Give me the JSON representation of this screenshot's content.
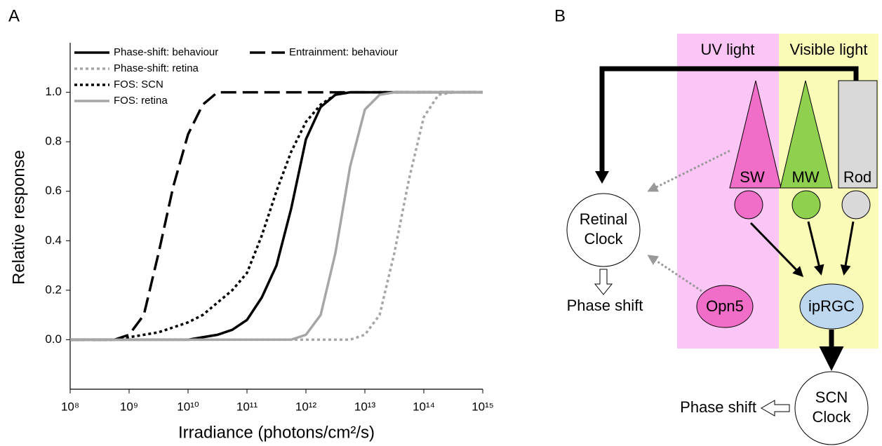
{
  "chart_data": {
    "type": "line",
    "panel": "A",
    "x_label": "Irradiance (photons/cm²/s)",
    "y_label": "Relative response",
    "xscale": "log",
    "legend": "top-left",
    "x": [
      100000000.0,
      177800000.0,
      316200000.0,
      562300000.0,
      1000000000.0,
      1778000000.0,
      3162000000.0,
      5623000000.0,
      10000000000.0,
      17780000000.0,
      31620000000.0,
      56230000000.0,
      100000000000.0,
      177800000000.0,
      316200000000.0,
      562300000000.0,
      1000000000000.0,
      1778000000000.0,
      3162000000000.0,
      5623000000000.0,
      10000000000000.0,
      17780000000000.0,
      31620000000000.0,
      56230000000000.0,
      100000000000000.0,
      177800000000000.0,
      316200000000000.0,
      562300000000000.0,
      1000000000000000.0
    ],
    "series": [
      {
        "name": "Phase-shift: behaviour",
        "color": "#000000",
        "style": "solid",
        "values": [
          0,
          0,
          0,
          0,
          0,
          0,
          0,
          0,
          0,
          0.01,
          0.02,
          0.04,
          0.08,
          0.17,
          0.3,
          0.53,
          0.81,
          0.94,
          0.99,
          1,
          1,
          1,
          1,
          1,
          1,
          1,
          1,
          1,
          1
        ]
      },
      {
        "name": "Entrainment: behaviour",
        "color": "#000000",
        "style": "dashed",
        "values": [
          0,
          0,
          0,
          0,
          0.02,
          0.1,
          0.35,
          0.62,
          0.83,
          0.95,
          1,
          1,
          1,
          1,
          1,
          1,
          1,
          1,
          1,
          1,
          1,
          1,
          1,
          1,
          1,
          1,
          1,
          1,
          1
        ]
      },
      {
        "name": "Phase-shift: retina",
        "color": "#a6a6a6",
        "style": "dotted",
        "values": [
          0,
          0,
          0,
          0,
          0,
          0,
          0,
          0,
          0,
          0,
          0,
          0,
          0,
          0,
          0,
          0,
          0,
          0,
          0,
          0,
          0.02,
          0.1,
          0.35,
          0.65,
          0.9,
          0.99,
          1,
          1,
          1
        ]
      },
      {
        "name": "FOS: SCN",
        "color": "#000000",
        "style": "dotted",
        "values": [
          0,
          0,
          0,
          0,
          0.01,
          0.02,
          0.03,
          0.05,
          0.07,
          0.1,
          0.15,
          0.2,
          0.27,
          0.42,
          0.6,
          0.76,
          0.88,
          0.95,
          0.99,
          1,
          1,
          1,
          1,
          1,
          1,
          1,
          1,
          1,
          1
        ]
      },
      {
        "name": "FOS: retina",
        "color": "#a6a6a6",
        "style": "solid",
        "values": [
          0,
          0,
          0,
          0,
          0,
          0,
          0,
          0,
          0,
          0,
          0,
          0,
          0,
          0,
          0,
          0,
          0.02,
          0.1,
          0.35,
          0.7,
          0.93,
          0.99,
          1,
          1,
          1,
          1,
          1,
          1,
          1
        ]
      }
    ],
    "xlim": [
      100000000.0,
      1000000000000000.0
    ],
    "xticks": [
      {
        "value": 100000000.0,
        "label": "10⁸"
      },
      {
        "value": 1000000000.0,
        "label": "10⁹"
      },
      {
        "value": 10000000000.0,
        "label": "10¹⁰"
      },
      {
        "value": 100000000000.0,
        "label": "10¹¹"
      },
      {
        "value": 1000000000000.0,
        "label": "10¹²"
      },
      {
        "value": 10000000000000.0,
        "label": "10¹³"
      },
      {
        "value": 100000000000000.0,
        "label": "10¹⁴"
      },
      {
        "value": 1000000000000000.0,
        "label": "10¹⁵"
      }
    ],
    "ylim": [
      -0.2,
      1.2
    ],
    "yticks": [
      {
        "value": 0,
        "label": "0.0"
      },
      0.2,
      0.4,
      0.6,
      0.8,
      {
        "value": 1,
        "label": "1.0"
      }
    ]
  },
  "diagram": {
    "panel": "B",
    "uv_label": "UV light",
    "visible_label": "Visible light",
    "sw": "SW",
    "mw": "MW",
    "rod": "Rod",
    "retinal_clock": [
      "Retinal",
      "Clock"
    ],
    "retinal_output": "Phase shift",
    "opn5": "Opn5",
    "iprgc": "ipRGC",
    "scn_clock": [
      "SCN",
      "Clock"
    ],
    "scn_output": "Phase shift"
  }
}
